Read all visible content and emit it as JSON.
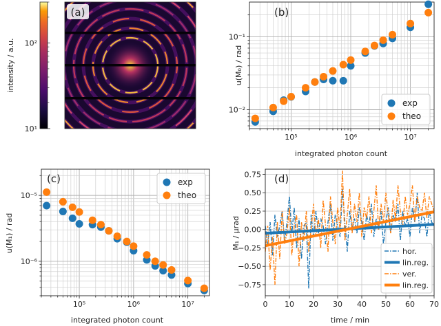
{
  "panels": {
    "a": "(a)",
    "b": "(b)",
    "c": "(c)",
    "d": "(d)"
  },
  "chart_data": [
    {
      "panel": "a",
      "type": "heatmap",
      "description_of_axes": "diffraction pattern image with logarithmic colorbar",
      "colorbar": {
        "label": "intensity / a.u.",
        "scale": "log",
        "range": [
          10,
          300
        ],
        "ticks": [
          {
            "value": 10,
            "label": "10¹"
          },
          {
            "value": 100,
            "label": "10²"
          }
        ],
        "colormap": "inferno"
      },
      "rings_count": 9,
      "horizontal_bars": 3
    },
    {
      "panel": "b",
      "type": "scatter",
      "xlabel": "integrated photon count",
      "ylabel": "u(M₀) / rad",
      "xscale": "log",
      "yscale": "log",
      "xlim": [
        20000,
        25000000
      ],
      "ylim": [
        0.0055,
        0.3
      ],
      "grid": true,
      "legend": "bottom-right",
      "x_ticks": [
        {
          "value": 100000,
          "label": "10⁵"
        },
        {
          "value": 1000000,
          "label": "10⁶"
        },
        {
          "value": 10000000,
          "label": "10⁷"
        }
      ],
      "y_ticks": [
        {
          "value": 0.01,
          "label": "10⁻²"
        },
        {
          "value": 0.1,
          "label": "10⁻¹"
        }
      ],
      "series": [
        {
          "name": "exp",
          "color": "#1f77b4",
          "x": [
            25000,
            50000,
            75000,
            100000,
            175000,
            250000,
            350000,
            500000,
            750000,
            1000000,
            1750000,
            2500000,
            3500000,
            5000000,
            10000000,
            20000000
          ],
          "y": [
            0.0068,
            0.0095,
            0.0135,
            0.015,
            0.0178,
            0.024,
            0.026,
            0.025,
            0.025,
            0.04,
            0.06,
            0.075,
            0.081,
            0.095,
            0.135,
            0.28
          ]
        },
        {
          "name": "theo",
          "color": "#ff7f0e",
          "x": [
            25000,
            50000,
            75000,
            100000,
            175000,
            250000,
            350000,
            500000,
            750000,
            1000000,
            1750000,
            2500000,
            3500000,
            5000000,
            10000000,
            20000000
          ],
          "y": [
            0.0076,
            0.0107,
            0.0131,
            0.0151,
            0.02,
            0.024,
            0.0284,
            0.034,
            0.0415,
            0.048,
            0.063,
            0.076,
            0.09,
            0.107,
            0.152,
            0.215
          ]
        }
      ]
    },
    {
      "panel": "c",
      "type": "scatter",
      "xlabel": "integrated photon count",
      "ylabel": "u(M₁) / rad",
      "xscale": "log",
      "yscale": "log",
      "xlim": [
        20000,
        25000000
      ],
      "ylim": [
        3e-07,
        2.5e-05
      ],
      "grid": true,
      "legend": "top-right",
      "x_ticks": [
        {
          "value": 100000,
          "label": "10⁵"
        },
        {
          "value": 1000000,
          "label": "10⁶"
        },
        {
          "value": 10000000,
          "label": "10⁷"
        }
      ],
      "y_ticks": [
        {
          "value": 1e-06,
          "label": "10⁻⁶"
        },
        {
          "value": 1e-05,
          "label": "10⁻⁵"
        }
      ],
      "series": [
        {
          "name": "exp",
          "color": "#1f77b4",
          "x": [
            25000,
            50000,
            75000,
            100000,
            175000,
            250000,
            350000,
            500000,
            750000,
            1000000,
            1750000,
            2500000,
            3500000,
            5000000,
            10000000,
            20000000
          ],
          "y": [
            7e-06,
            5.7e-06,
            4.5e-06,
            3.7e-06,
            3.6e-06,
            3.3e-06,
            2.9e-06,
            2.2e-06,
            1.95e-06,
            1.45e-06,
            1.05e-06,
            8.5e-07,
            7.2e-07,
            6.2e-07,
            4.6e-07,
            3.6e-07
          ]
        },
        {
          "name": "theo",
          "color": "#ff7f0e",
          "x": [
            25000,
            50000,
            75000,
            100000,
            175000,
            250000,
            350000,
            500000,
            750000,
            1000000,
            1750000,
            2500000,
            3500000,
            5000000,
            10000000,
            20000000
          ],
          "y": [
            1.12e-05,
            8e-06,
            6.6e-06,
            5.6e-06,
            4.2e-06,
            3.6e-06,
            2.9e-06,
            2.4e-06,
            2e-06,
            1.7e-06,
            1.25e-06,
            1e-06,
            8.8e-07,
            7.4e-07,
            5.1e-07,
            3.9e-07
          ]
        }
      ]
    },
    {
      "panel": "d",
      "type": "line",
      "xlabel": "time / min",
      "ylabel": "M₁ / μrad",
      "xlim": [
        0,
        70
      ],
      "ylim": [
        -0.9,
        0.82
      ],
      "grid": true,
      "legend": "bottom-right",
      "x_ticks": [
        0,
        10,
        20,
        30,
        40,
        50,
        60,
        70
      ],
      "y_ticks": [
        -0.75,
        -0.5,
        -0.25,
        0.0,
        0.25,
        0.5,
        0.75
      ],
      "y_tick_labels": [
        "−0.75",
        "−0.50",
        "−0.25",
        "0.00",
        "0.25",
        "0.50",
        "0.75"
      ],
      "series": [
        {
          "name": "hor.",
          "color": "#1f77b4",
          "style": "dashdot",
          "x": [
            0,
            1,
            2,
            3,
            4,
            5,
            6,
            7,
            8,
            9,
            10,
            11,
            12,
            13,
            14,
            15,
            16,
            17,
            18,
            19,
            20,
            21,
            22,
            23,
            24,
            25,
            26,
            27,
            28,
            29,
            30,
            31,
            32,
            33,
            34,
            35,
            36,
            37,
            38,
            39,
            40,
            41,
            42,
            43,
            44,
            45,
            46,
            47,
            48,
            49,
            50,
            51,
            52,
            53,
            54,
            55,
            56,
            57,
            58,
            59,
            60,
            61,
            62,
            63,
            64,
            65,
            66,
            67,
            68,
            69,
            70
          ],
          "y": [
            0.05,
            -0.2,
            0.1,
            -0.35,
            0.2,
            -0.1,
            0.05,
            0.25,
            -0.15,
            0.1,
            0.45,
            -0.05,
            0.3,
            -0.25,
            0.15,
            -0.4,
            0.05,
            0.1,
            -0.8,
            0.2,
            -0.1,
            0.25,
            -0.05,
            0.15,
            0.05,
            -0.2,
            0.1,
            0.35,
            -0.15,
            0.2,
            0.05,
            -0.1,
            0.55,
            0.1,
            -0.3,
            0.25,
            0.0,
            0.15,
            -0.05,
            0.3,
            0.1,
            -0.15,
            0.2,
            0.05,
            0.35,
            -0.1,
            0.15,
            0.0,
            0.25,
            -0.2,
            0.1,
            0.3,
            -0.05,
            0.2,
            0.1,
            0.35,
            -0.15,
            0.25,
            0.05,
            0.15,
            -0.1,
            0.3,
            0.1,
            0.5,
            -0.05,
            0.2,
            0.15,
            -0.1,
            0.25,
            0.1,
            0.05
          ]
        },
        {
          "name": "lin.reg.",
          "color": "#1f77b4",
          "style": "solid-thick",
          "x": [
            0,
            70
          ],
          "y": [
            -0.05,
            0.07
          ]
        },
        {
          "name": "ver.",
          "color": "#ff7f0e",
          "style": "dashdot",
          "x": [
            0,
            1,
            2,
            3,
            4,
            5,
            6,
            7,
            8,
            9,
            10,
            11,
            12,
            13,
            14,
            15,
            16,
            17,
            18,
            19,
            20,
            21,
            22,
            23,
            24,
            25,
            26,
            27,
            28,
            29,
            30,
            31,
            32,
            33,
            34,
            35,
            36,
            37,
            38,
            39,
            40,
            41,
            42,
            43,
            44,
            45,
            46,
            47,
            48,
            49,
            50,
            51,
            52,
            53,
            54,
            55,
            56,
            57,
            58,
            59,
            60,
            61,
            62,
            63,
            64,
            65,
            66,
            67,
            68,
            69,
            70
          ],
          "y": [
            -0.3,
            0.05,
            -0.55,
            -0.1,
            -0.75,
            0.1,
            -0.4,
            0.25,
            -0.2,
            -0.05,
            0.3,
            -0.35,
            0.05,
            0.2,
            -0.5,
            0.1,
            -0.15,
            0.25,
            -0.3,
            0.0,
            0.35,
            -0.1,
            0.15,
            -0.25,
            0.4,
            0.05,
            -0.3,
            0.45,
            0.1,
            -0.2,
            0.3,
            0.0,
            0.8,
            -0.15,
            0.2,
            0.55,
            -0.05,
            0.35,
            0.1,
            0.5,
            -0.1,
            0.3,
            0.15,
            0.45,
            -0.05,
            0.25,
            0.6,
            0.0,
            0.35,
            0.1,
            0.5,
            0.2,
            -0.05,
            0.4,
            0.15,
            0.6,
            0.25,
            0.05,
            0.45,
            0.2,
            0.35,
            0.6,
            0.1,
            0.45,
            0.3,
            0.25,
            0.5,
            0.15,
            0.45,
            0.35,
            0.25
          ]
        },
        {
          "name": "lin.reg.",
          "color": "#ff7f0e",
          "style": "solid-thick",
          "x": [
            0,
            70
          ],
          "y": [
            -0.22,
            0.24
          ]
        }
      ]
    }
  ]
}
